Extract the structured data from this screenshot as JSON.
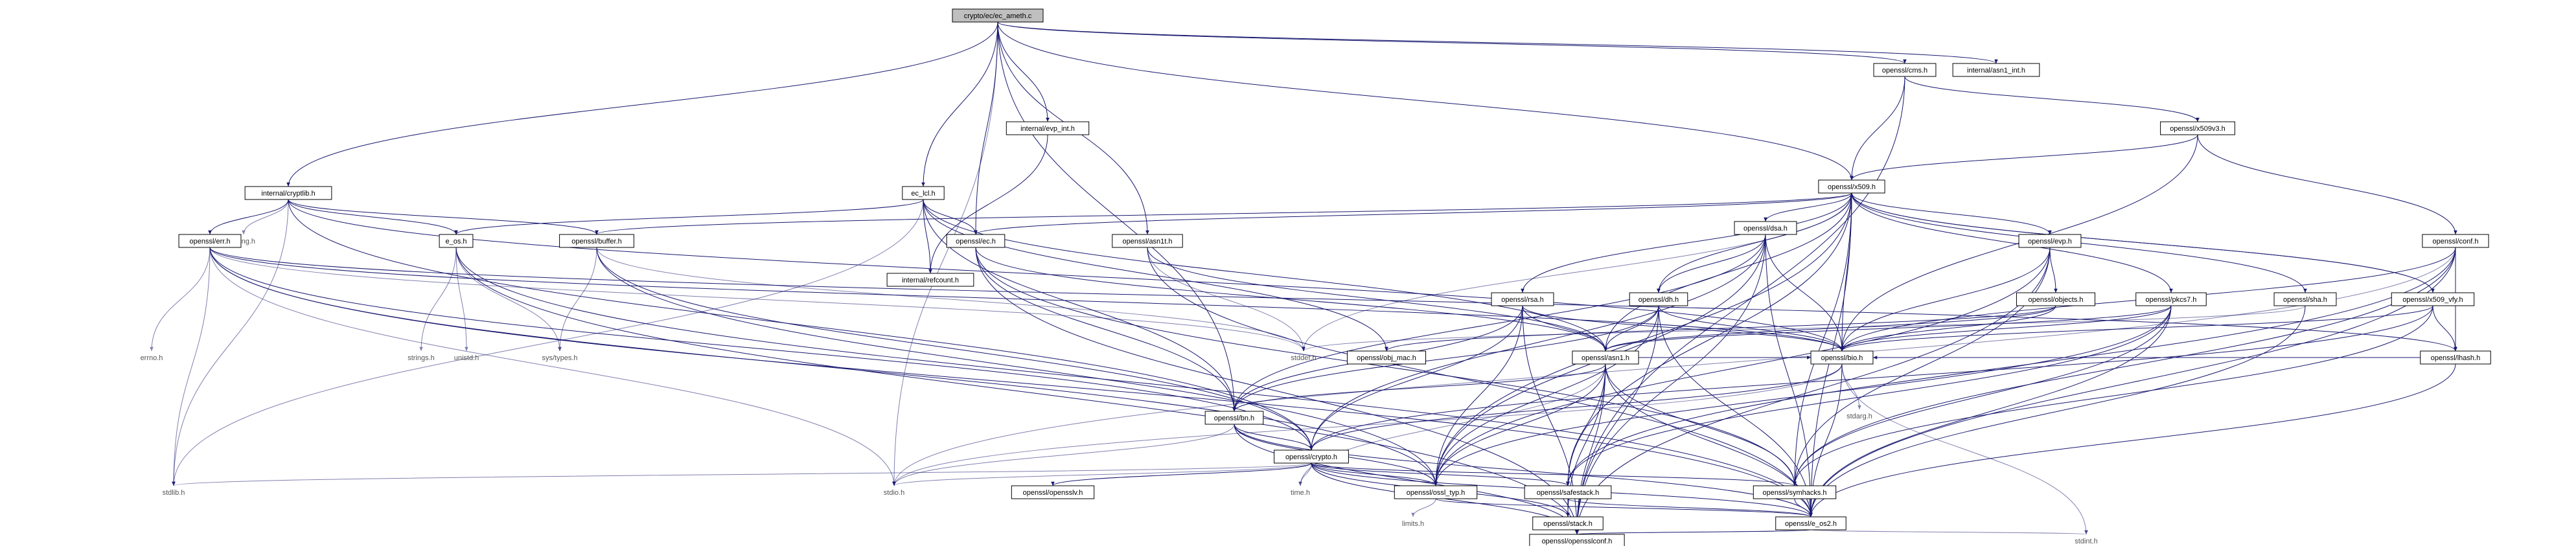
{
  "graph": {
    "root": "crypto/ec/ec_ameth.c",
    "nodes": [
      {
        "id": "root",
        "label": "crypto/ec/ec_ameth.c",
        "kind": "root"
      },
      {
        "id": "internal_cryptlib",
        "label": "internal/cryptlib.h",
        "kind": "header"
      },
      {
        "id": "ec_lcl",
        "label": "ec_lcl.h",
        "kind": "header"
      },
      {
        "id": "internal_evp_int",
        "label": "internal/evp_int.h",
        "kind": "header"
      },
      {
        "id": "openssl_asn1t",
        "label": "openssl/asn1t.h",
        "kind": "header"
      },
      {
        "id": "openssl_cms",
        "label": "openssl/cms.h",
        "kind": "header"
      },
      {
        "id": "internal_asn1_int",
        "label": "internal/asn1_int.h",
        "kind": "header"
      },
      {
        "id": "openssl_x509v3",
        "label": "openssl/x509v3.h",
        "kind": "header"
      },
      {
        "id": "openssl_x509",
        "label": "openssl/x509.h",
        "kind": "header"
      },
      {
        "id": "openssl_conf",
        "label": "openssl/conf.h",
        "kind": "header"
      },
      {
        "id": "string_h",
        "label": "string.h",
        "kind": "system"
      },
      {
        "id": "openssl_err",
        "label": "openssl/err.h",
        "kind": "header"
      },
      {
        "id": "e_os",
        "label": "e_os.h",
        "kind": "header"
      },
      {
        "id": "openssl_buffer",
        "label": "openssl/buffer.h",
        "kind": "header"
      },
      {
        "id": "internal_refcount",
        "label": "internal/refcount.h",
        "kind": "header"
      },
      {
        "id": "openssl_ec",
        "label": "openssl/ec.h",
        "kind": "header"
      },
      {
        "id": "openssl_dsa",
        "label": "openssl/dsa.h",
        "kind": "header"
      },
      {
        "id": "openssl_evp",
        "label": "openssl/evp.h",
        "kind": "header"
      },
      {
        "id": "openssl_rsa",
        "label": "openssl/rsa.h",
        "kind": "header"
      },
      {
        "id": "openssl_dh",
        "label": "openssl/dh.h",
        "kind": "header"
      },
      {
        "id": "openssl_objects",
        "label": "openssl/objects.h",
        "kind": "header"
      },
      {
        "id": "openssl_sha",
        "label": "openssl/sha.h",
        "kind": "header"
      },
      {
        "id": "openssl_pkcs7",
        "label": "openssl/pkcs7.h",
        "kind": "header"
      },
      {
        "id": "openssl_x509_vfy",
        "label": "openssl/x509_vfy.h",
        "kind": "header"
      },
      {
        "id": "openssl_lhash",
        "label": "openssl/lhash.h",
        "kind": "header"
      },
      {
        "id": "errno_h",
        "label": "errno.h",
        "kind": "system"
      },
      {
        "id": "strings_h",
        "label": "strings.h",
        "kind": "system"
      },
      {
        "id": "unistd_h",
        "label": "unistd.h",
        "kind": "system"
      },
      {
        "id": "sys_types_h",
        "label": "sys/types.h",
        "kind": "system"
      },
      {
        "id": "stddef_h",
        "label": "stddef.h",
        "kind": "system"
      },
      {
        "id": "openssl_obj_mac",
        "label": "openssl/obj_mac.h",
        "kind": "header"
      },
      {
        "id": "openssl_asn1",
        "label": "openssl/asn1.h",
        "kind": "header"
      },
      {
        "id": "openssl_bio",
        "label": "openssl/bio.h",
        "kind": "header"
      },
      {
        "id": "openssl_bn",
        "label": "openssl/bn.h",
        "kind": "header"
      },
      {
        "id": "stdarg_h",
        "label": "stdarg.h",
        "kind": "system"
      },
      {
        "id": "openssl_crypto",
        "label": "openssl/crypto.h",
        "kind": "header"
      },
      {
        "id": "stdlib_h",
        "label": "stdlib.h",
        "kind": "system"
      },
      {
        "id": "stdio_h",
        "label": "stdio.h",
        "kind": "system"
      },
      {
        "id": "openssl_opensslv",
        "label": "openssl/opensslv.h",
        "kind": "header"
      },
      {
        "id": "time_h",
        "label": "time.h",
        "kind": "system"
      },
      {
        "id": "openssl_ossl_typ",
        "label": "openssl/ossl_typ.h",
        "kind": "header"
      },
      {
        "id": "openssl_safestack",
        "label": "openssl/safestack.h",
        "kind": "header"
      },
      {
        "id": "openssl_symhacks",
        "label": "openssl/symhacks.h",
        "kind": "header"
      },
      {
        "id": "limits_h",
        "label": "limits.h",
        "kind": "system"
      },
      {
        "id": "openssl_stack",
        "label": "openssl/stack.h",
        "kind": "header"
      },
      {
        "id": "openssl_e_os2",
        "label": "openssl/e_os2.h",
        "kind": "header"
      },
      {
        "id": "openssl_opensslconf",
        "label": "openssl/opensslconf.h",
        "kind": "header"
      },
      {
        "id": "stdint_h",
        "label": "stdint.h",
        "kind": "system"
      }
    ],
    "edges": [
      [
        "root",
        "internal_cryptlib"
      ],
      [
        "root",
        "ec_lcl"
      ],
      [
        "root",
        "internal_evp_int"
      ],
      [
        "root",
        "openssl_asn1t"
      ],
      [
        "root",
        "openssl_cms"
      ],
      [
        "root",
        "internal_asn1_int"
      ],
      [
        "root",
        "openssl_x509"
      ],
      [
        "root",
        "openssl_ec"
      ],
      [
        "root",
        "openssl_bn"
      ],
      [
        "root",
        "stdio_h"
      ],
      [
        "internal_cryptlib",
        "string_h"
      ],
      [
        "internal_cryptlib",
        "openssl_err"
      ],
      [
        "internal_cryptlib",
        "e_os"
      ],
      [
        "internal_cryptlib",
        "openssl_buffer"
      ],
      [
        "internal_cryptlib",
        "stdlib_h"
      ],
      [
        "internal_cryptlib",
        "openssl_bio"
      ],
      [
        "internal_cryptlib",
        "openssl_crypto"
      ],
      [
        "ec_lcl",
        "e_os"
      ],
      [
        "ec_lcl",
        "internal_refcount"
      ],
      [
        "ec_lcl",
        "openssl_ec"
      ],
      [
        "ec_lcl",
        "openssl_obj_mac"
      ],
      [
        "ec_lcl",
        "openssl_bn"
      ],
      [
        "ec_lcl",
        "stdlib_h"
      ],
      [
        "ec_lcl",
        "openssl_asn1"
      ],
      [
        "internal_evp_int",
        "internal_refcount"
      ],
      [
        "openssl_asn1t",
        "stddef_h"
      ],
      [
        "openssl_asn1t",
        "openssl_asn1"
      ],
      [
        "openssl_asn1t",
        "openssl_e_os2"
      ],
      [
        "openssl_cms",
        "openssl_x509v3"
      ],
      [
        "openssl_cms",
        "openssl_x509"
      ],
      [
        "openssl_cms",
        "openssl_opensslconf"
      ],
      [
        "openssl_x509v3",
        "openssl_x509"
      ],
      [
        "openssl_x509v3",
        "openssl_conf"
      ],
      [
        "openssl_x509v3",
        "openssl_bio"
      ],
      [
        "openssl_conf",
        "openssl_lhash"
      ],
      [
        "openssl_conf",
        "openssl_bio"
      ],
      [
        "openssl_conf",
        "openssl_safestack"
      ],
      [
        "openssl_conf",
        "openssl_symhacks"
      ],
      [
        "openssl_conf",
        "openssl_e_os2"
      ],
      [
        "openssl_conf",
        "stdio_h"
      ],
      [
        "openssl_x509",
        "openssl_buffer"
      ],
      [
        "openssl_x509",
        "openssl_ec"
      ],
      [
        "openssl_x509",
        "openssl_dsa"
      ],
      [
        "openssl_x509",
        "openssl_evp"
      ],
      [
        "openssl_x509",
        "openssl_rsa"
      ],
      [
        "openssl_x509",
        "openssl_dh"
      ],
      [
        "openssl_x509",
        "openssl_sha"
      ],
      [
        "openssl_x509",
        "openssl_pkcs7"
      ],
      [
        "openssl_x509",
        "openssl_x509_vfy"
      ],
      [
        "openssl_x509",
        "openssl_asn1"
      ],
      [
        "openssl_x509",
        "openssl_bio"
      ],
      [
        "openssl_x509",
        "openssl_safestack"
      ],
      [
        "openssl_x509",
        "openssl_ossl_typ"
      ],
      [
        "openssl_x509",
        "openssl_symhacks"
      ],
      [
        "openssl_x509",
        "openssl_e_os2"
      ],
      [
        "openssl_x509",
        "stddef_h"
      ],
      [
        "openssl_err",
        "errno_h"
      ],
      [
        "openssl_err",
        "stdlib_h"
      ],
      [
        "openssl_err",
        "stdio_h"
      ],
      [
        "openssl_err",
        "stddef_h"
      ],
      [
        "openssl_err",
        "openssl_bio"
      ],
      [
        "openssl_err",
        "openssl_crypto"
      ],
      [
        "openssl_err",
        "openssl_e_os2"
      ],
      [
        "openssl_err",
        "openssl_ossl_typ"
      ],
      [
        "openssl_err",
        "openssl_lhash"
      ],
      [
        "e_os",
        "strings_h"
      ],
      [
        "e_os",
        "unistd_h"
      ],
      [
        "e_os",
        "sys_types_h"
      ],
      [
        "e_os",
        "openssl_opensslconf"
      ],
      [
        "e_os",
        "openssl_e_os2"
      ],
      [
        "openssl_buffer",
        "sys_types_h"
      ],
      [
        "openssl_buffer",
        "stddef_h"
      ],
      [
        "openssl_buffer",
        "openssl_ossl_typ"
      ],
      [
        "openssl_buffer",
        "openssl_crypto"
      ],
      [
        "openssl_ec",
        "openssl_asn1"
      ],
      [
        "openssl_ec",
        "openssl_bn"
      ],
      [
        "openssl_ec",
        "openssl_symhacks"
      ],
      [
        "openssl_ec",
        "openssl_opensslconf"
      ],
      [
        "openssl_dsa",
        "openssl_dh"
      ],
      [
        "openssl_dsa",
        "openssl_bn"
      ],
      [
        "openssl_dsa",
        "openssl_bio"
      ],
      [
        "openssl_dsa",
        "openssl_crypto"
      ],
      [
        "openssl_dsa",
        "openssl_ossl_typ"
      ],
      [
        "openssl_dsa",
        "openssl_e_os2"
      ],
      [
        "openssl_dsa",
        "openssl_opensslconf"
      ],
      [
        "openssl_evp",
        "openssl_objects"
      ],
      [
        "openssl_evp",
        "openssl_bio"
      ],
      [
        "openssl_evp",
        "openssl_ossl_typ"
      ],
      [
        "openssl_evp",
        "openssl_symhacks"
      ],
      [
        "openssl_evp",
        "openssl_opensslconf"
      ],
      [
        "openssl_rsa",
        "openssl_asn1"
      ],
      [
        "openssl_rsa",
        "openssl_bio"
      ],
      [
        "openssl_rsa",
        "openssl_crypto"
      ],
      [
        "openssl_rsa",
        "openssl_ossl_typ"
      ],
      [
        "openssl_rsa",
        "openssl_bn"
      ],
      [
        "openssl_rsa",
        "openssl_opensslconf"
      ],
      [
        "openssl_dh",
        "openssl_bn"
      ],
      [
        "openssl_dh",
        "openssl_bio"
      ],
      [
        "openssl_dh",
        "openssl_asn1"
      ],
      [
        "openssl_dh",
        "openssl_ossl_typ"
      ],
      [
        "openssl_dh",
        "openssl_e_os2"
      ],
      [
        "openssl_dh",
        "openssl_opensslconf"
      ],
      [
        "openssl_objects",
        "openssl_obj_mac"
      ],
      [
        "openssl_objects",
        "openssl_bio"
      ],
      [
        "openssl_objects",
        "openssl_asn1"
      ],
      [
        "openssl_sha",
        "stddef_h"
      ],
      [
        "openssl_sha",
        "openssl_e_os2"
      ],
      [
        "openssl_pkcs7",
        "openssl_asn1"
      ],
      [
        "openssl_pkcs7",
        "openssl_bio"
      ],
      [
        "openssl_pkcs7",
        "openssl_e_os2"
      ],
      [
        "openssl_pkcs7",
        "openssl_symhacks"
      ],
      [
        "openssl_pkcs7",
        "openssl_ossl_typ"
      ],
      [
        "openssl_pkcs7",
        "openssl_safestack"
      ],
      [
        "openssl_x509_vfy",
        "openssl_x509"
      ],
      [
        "openssl_x509_vfy",
        "openssl_lhash"
      ],
      [
        "openssl_x509_vfy",
        "openssl_bio"
      ],
      [
        "openssl_x509_vfy",
        "openssl_crypto"
      ],
      [
        "openssl_x509_vfy",
        "openssl_symhacks"
      ],
      [
        "openssl_lhash",
        "openssl_e_os2"
      ],
      [
        "openssl_lhash",
        "openssl_bio"
      ],
      [
        "openssl_asn1",
        "time_h"
      ],
      [
        "openssl_asn1",
        "openssl_e_os2"
      ],
      [
        "openssl_asn1",
        "openssl_opensslconf"
      ],
      [
        "openssl_asn1",
        "openssl_bio"
      ],
      [
        "openssl_asn1",
        "openssl_safestack"
      ],
      [
        "openssl_asn1",
        "openssl_stack"
      ],
      [
        "openssl_asn1",
        "openssl_symhacks"
      ],
      [
        "openssl_asn1",
        "openssl_ossl_typ"
      ],
      [
        "openssl_asn1",
        "openssl_bn"
      ],
      [
        "openssl_bio",
        "stdio_h"
      ],
      [
        "openssl_bio",
        "stdarg_h"
      ],
      [
        "openssl_bio",
        "openssl_crypto"
      ],
      [
        "openssl_bio",
        "openssl_e_os2"
      ],
      [
        "openssl_bio",
        "stdint_h"
      ],
      [
        "openssl_bn",
        "openssl_e_os2"
      ],
      [
        "openssl_bn",
        "stdio_h"
      ],
      [
        "openssl_bn",
        "openssl_opensslconf"
      ],
      [
        "openssl_bn",
        "openssl_ossl_typ"
      ],
      [
        "openssl_bn",
        "openssl_crypto"
      ],
      [
        "openssl_crypto",
        "stdlib_h"
      ],
      [
        "openssl_crypto",
        "time_h"
      ],
      [
        "openssl_crypto",
        "openssl_e_os2"
      ],
      [
        "openssl_crypto",
        "stdio_h"
      ],
      [
        "openssl_crypto",
        "openssl_stack"
      ],
      [
        "openssl_crypto",
        "openssl_safestack"
      ],
      [
        "openssl_crypto",
        "openssl_opensslv"
      ],
      [
        "openssl_crypto",
        "openssl_ossl_typ"
      ],
      [
        "openssl_crypto",
        "openssl_opensslconf"
      ],
      [
        "openssl_crypto",
        "openssl_symhacks"
      ],
      [
        "openssl_ossl_typ",
        "limits_h"
      ],
      [
        "openssl_ossl_typ",
        "openssl_e_os2"
      ],
      [
        "openssl_safestack",
        "openssl_stack"
      ],
      [
        "openssl_safestack",
        "openssl_e_os2"
      ],
      [
        "openssl_symhacks",
        "openssl_e_os2"
      ],
      [
        "openssl_e_os2",
        "openssl_opensslconf"
      ],
      [
        "openssl_e_os2",
        "stdint_h"
      ]
    ]
  }
}
